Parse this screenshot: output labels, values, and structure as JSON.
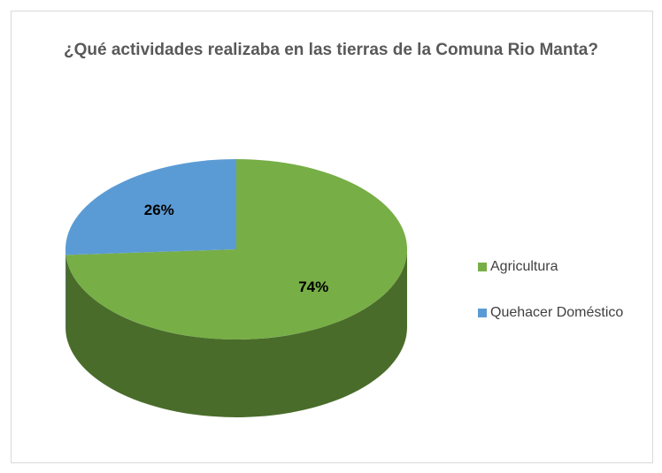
{
  "chart_data": {
    "type": "pie",
    "title": "¿Qué actividades  realizaba en las tierras de la Comuna Rio Manta?",
    "categories": [
      "Agricultura",
      "Quehacer Doméstico"
    ],
    "values": [
      74,
      26
    ],
    "value_labels": [
      "74%",
      "26%"
    ],
    "colors": [
      "#77ae46",
      "#5b9bd5"
    ],
    "legend": "right"
  }
}
